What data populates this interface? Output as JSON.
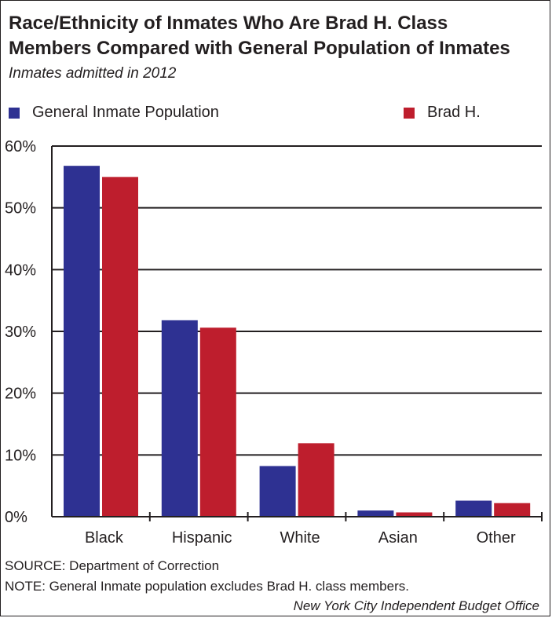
{
  "title_line1": "Race/Ethnicity of Inmates Who Are Brad H. Class",
  "title_line2": "Members Compared with General Population of Inmates",
  "subtitle": "Inmates admitted in 2012",
  "legend": [
    {
      "label": "General Inmate Population",
      "color": "#2e3192"
    },
    {
      "label": "Brad H.",
      "color": "#be1e2d"
    }
  ],
  "chart_data": {
    "type": "bar",
    "categories": [
      "Black",
      "Hispanic",
      "White",
      "Asian",
      "Other"
    ],
    "series": [
      {
        "name": "General Inmate Population",
        "color": "#2e3192",
        "values": [
          56.8,
          31.8,
          8.2,
          1.0,
          2.6
        ]
      },
      {
        "name": "Brad H.",
        "color": "#be1e2d",
        "values": [
          55.0,
          30.6,
          11.9,
          0.7,
          2.2
        ]
      }
    ],
    "ylim": [
      0,
      60
    ],
    "yticks": [
      0,
      10,
      20,
      30,
      40,
      50,
      60
    ],
    "ytick_labels": [
      "0%",
      "10%",
      "20%",
      "30%",
      "40%",
      "50%",
      "60%"
    ],
    "grid": true
  },
  "source": "SOURCE: Department of Correction",
  "note": "NOTE: General Inmate population excludes Brad H. class members.",
  "credit": "New York City Independent Budget Office"
}
